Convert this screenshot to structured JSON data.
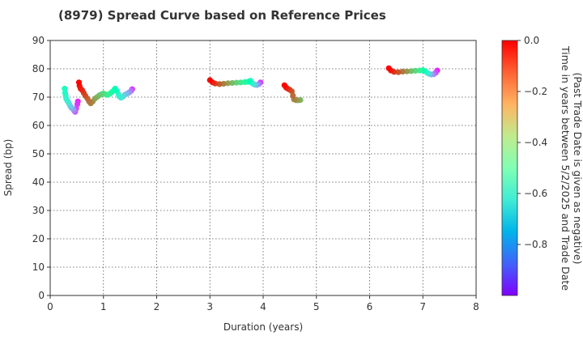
{
  "chart_data": {
    "type": "scatter",
    "title": "(8979)   Spread Curve based on Reference Prices",
    "xlabel": "Duration (years)",
    "ylabel": "Spread (bp)",
    "xlim": [
      0,
      8
    ],
    "ylim": [
      0,
      90
    ],
    "xticks": [
      "0",
      "1",
      "2",
      "3",
      "4",
      "5",
      "6",
      "7",
      "8"
    ],
    "yticks": [
      "0",
      "10",
      "20",
      "30",
      "40",
      "50",
      "60",
      "70",
      "80",
      "90"
    ],
    "grid": true,
    "colorbar": {
      "label_line1": "Time in years between 5/2/2025 and Trade Date",
      "label_line2": "(Past Trade Date is given as negative)",
      "range": [
        -1.0,
        0.0
      ],
      "ticks": [
        "0.0",
        "−0.2",
        "−0.4",
        "−0.6",
        "−0.8"
      ],
      "tick_values": [
        0.0,
        -0.2,
        -0.4,
        -0.6,
        -0.8
      ],
      "colormap": "rainbow"
    },
    "series": [
      {
        "points": [
          [
            0.54,
            75.2,
            0.0
          ],
          [
            0.55,
            74.0,
            -0.02
          ],
          [
            0.57,
            73.0,
            -0.04
          ],
          [
            0.6,
            72.5,
            -0.06
          ],
          [
            0.63,
            71.5,
            -0.08
          ],
          [
            0.66,
            70.5,
            -0.1
          ],
          [
            0.7,
            69.5,
            -0.13
          ],
          [
            0.73,
            68.5,
            -0.15
          ],
          [
            0.76,
            67.8,
            -0.17
          ],
          [
            0.8,
            68.5,
            -0.2
          ],
          [
            0.84,
            69.5,
            -0.23
          ],
          [
            0.88,
            70.0,
            -0.26
          ],
          [
            0.92,
            70.6,
            -0.29
          ],
          [
            0.96,
            71.0,
            -0.32
          ],
          [
            1.0,
            71.3,
            -0.35
          ],
          [
            1.04,
            71.0,
            -0.38
          ],
          [
            1.08,
            70.8,
            -0.41
          ],
          [
            1.12,
            71.2,
            -0.44
          ],
          [
            1.16,
            71.8,
            -0.47
          ],
          [
            1.2,
            72.5,
            -0.5
          ],
          [
            1.22,
            73.0,
            -0.52
          ],
          [
            1.25,
            72.2,
            -0.55
          ],
          [
            1.28,
            71.0,
            -0.58
          ],
          [
            1.3,
            70.2,
            -0.62
          ],
          [
            1.33,
            69.8,
            -0.65
          ],
          [
            1.37,
            70.2,
            -0.68
          ],
          [
            1.4,
            70.8,
            -0.72
          ],
          [
            1.44,
            71.2,
            -0.76
          ],
          [
            1.48,
            71.6,
            -0.8
          ],
          [
            1.52,
            72.2,
            -0.86
          ],
          [
            1.54,
            72.8,
            -0.92
          ],
          [
            0.27,
            73.0,
            -0.55
          ],
          [
            0.28,
            71.5,
            -0.57
          ],
          [
            0.29,
            70.5,
            -0.59
          ],
          [
            0.3,
            69.5,
            -0.61
          ],
          [
            0.32,
            68.8,
            -0.63
          ],
          [
            0.34,
            68.2,
            -0.66
          ],
          [
            0.36,
            67.5,
            -0.69
          ],
          [
            0.38,
            66.8,
            -0.72
          ],
          [
            0.4,
            66.2,
            -0.76
          ],
          [
            0.43,
            65.8,
            -0.8
          ],
          [
            0.45,
            65.2,
            -0.84
          ],
          [
            0.47,
            64.8,
            -0.88
          ],
          [
            0.49,
            66.0,
            -0.91
          ],
          [
            0.51,
            67.5,
            -0.93
          ],
          [
            0.52,
            68.5,
            -0.95
          ]
        ]
      },
      {
        "points": [
          [
            3.0,
            76.0,
            0.0
          ],
          [
            3.05,
            75.2,
            -0.04
          ],
          [
            3.1,
            74.8,
            -0.08
          ],
          [
            3.18,
            74.6,
            -0.12
          ],
          [
            3.26,
            74.7,
            -0.17
          ],
          [
            3.34,
            74.9,
            -0.22
          ],
          [
            3.42,
            75.0,
            -0.27
          ],
          [
            3.5,
            75.1,
            -0.32
          ],
          [
            3.58,
            75.2,
            -0.38
          ],
          [
            3.66,
            75.3,
            -0.44
          ],
          [
            3.72,
            75.4,
            -0.5
          ],
          [
            3.76,
            75.8,
            -0.56
          ],
          [
            3.8,
            74.8,
            -0.62
          ],
          [
            3.84,
            74.4,
            -0.7
          ],
          [
            3.88,
            74.3,
            -0.77
          ],
          [
            3.92,
            74.6,
            -0.84
          ],
          [
            3.95,
            75.2,
            -0.92
          ]
        ]
      },
      {
        "points": [
          [
            4.4,
            74.2,
            0.0
          ],
          [
            4.43,
            73.4,
            -0.03
          ],
          [
            4.46,
            73.0,
            -0.06
          ],
          [
            4.5,
            72.6,
            -0.09
          ],
          [
            4.54,
            72.0,
            -0.12
          ],
          [
            4.56,
            70.5,
            -0.14
          ],
          [
            4.58,
            69.2,
            -0.17
          ],
          [
            4.62,
            68.9,
            -0.2
          ],
          [
            4.66,
            68.9,
            -0.23
          ],
          [
            4.7,
            69.0,
            -0.26
          ]
        ]
      },
      {
        "points": [
          [
            6.36,
            80.2,
            0.0
          ],
          [
            6.4,
            79.4,
            -0.03
          ],
          [
            6.46,
            78.9,
            -0.07
          ],
          [
            6.54,
            78.8,
            -0.11
          ],
          [
            6.62,
            79.0,
            -0.16
          ],
          [
            6.7,
            79.1,
            -0.21
          ],
          [
            6.78,
            79.2,
            -0.27
          ],
          [
            6.86,
            79.3,
            -0.33
          ],
          [
            6.94,
            79.4,
            -0.4
          ],
          [
            7.0,
            79.5,
            -0.48
          ],
          [
            7.04,
            79.2,
            -0.55
          ],
          [
            7.08,
            78.6,
            -0.62
          ],
          [
            7.12,
            78.2,
            -0.7
          ],
          [
            7.16,
            78.0,
            -0.77
          ],
          [
            7.2,
            78.1,
            -0.84
          ],
          [
            7.24,
            78.6,
            -0.9
          ],
          [
            7.27,
            79.4,
            -0.95
          ]
        ]
      }
    ]
  }
}
